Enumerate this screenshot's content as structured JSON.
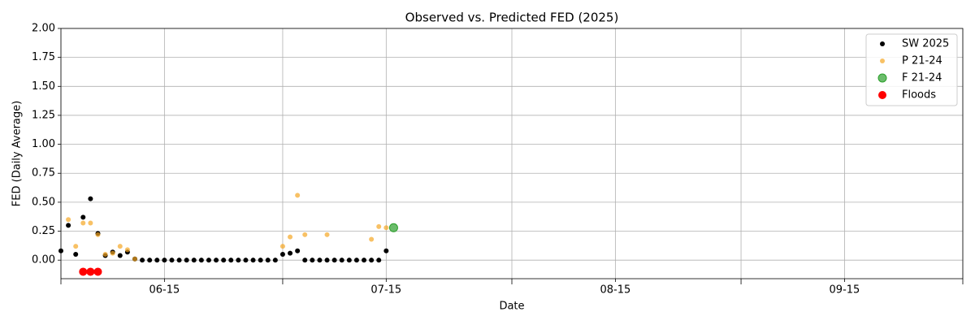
{
  "chart_data": {
    "type": "scatter",
    "title": "Observed vs. Predicted FED (2025)",
    "x_label": "Date",
    "y_label": "FED (Daily Average)",
    "xlim": [
      "06-01",
      "10-01"
    ],
    "xticks": [
      "06-15",
      "07-15",
      "08-15",
      "09-15"
    ],
    "xticks_minor": [
      "06-01",
      "07-01",
      "08-01",
      "09-01",
      "10-01"
    ],
    "ylim": [
      -0.16,
      2.0
    ],
    "yticks": [
      {
        "value": 0,
        "label": "0.00"
      },
      {
        "value": 0.25,
        "label": "0.25"
      },
      {
        "value": 0.5,
        "label": "0.50"
      },
      {
        "value": 0.75,
        "label": "0.75"
      },
      {
        "value": 1,
        "label": "1.00"
      },
      {
        "value": 1.25,
        "label": "1.25"
      },
      {
        "value": 1.5,
        "label": "1.50"
      },
      {
        "value": 1.75,
        "label": "1.75"
      },
      {
        "value": 2,
        "label": "2.00"
      }
    ],
    "grid": true,
    "legend": "upper right",
    "series": [
      {
        "name": "SW 2025",
        "color": "#000000",
        "alpha": 1,
        "size": 3,
        "x": [
          "06-01",
          "06-02",
          "06-03",
          "06-04",
          "06-05",
          "06-06",
          "06-07",
          "06-08",
          "06-09",
          "06-10",
          "06-11",
          "06-12",
          "06-13",
          "06-14",
          "06-15",
          "06-16",
          "06-17",
          "06-18",
          "06-19",
          "06-20",
          "06-21",
          "06-22",
          "06-23",
          "06-24",
          "06-25",
          "06-26",
          "06-27",
          "06-28",
          "06-29",
          "06-30",
          "07-01",
          "07-02",
          "07-03",
          "07-04",
          "07-05",
          "07-06",
          "07-07",
          "07-08",
          "07-09",
          "07-10",
          "07-11",
          "07-12",
          "07-13",
          "07-14",
          "07-15"
        ],
        "values": [
          0.08,
          0.3,
          0.05,
          0.37,
          0.53,
          0.23,
          0.04,
          0.07,
          0.04,
          0.07,
          0.01,
          0,
          0,
          0,
          0,
          0,
          0,
          0,
          0,
          0,
          0,
          0,
          0,
          0,
          0,
          0,
          0,
          0,
          0,
          0,
          0.05,
          0.06,
          0.08,
          0,
          0,
          0,
          0,
          0,
          0,
          0,
          0,
          0,
          0,
          0,
          0.08
        ]
      },
      {
        "name": "P 21-24",
        "color": "#f5a623",
        "alpha": 0.7,
        "size": 3,
        "x": [
          "06-02",
          "06-03",
          "06-04",
          "06-05",
          "06-06",
          "06-07",
          "06-08",
          "06-09",
          "06-10",
          "06-11",
          "07-01",
          "07-02",
          "07-03",
          "07-04",
          "07-07",
          "07-13",
          "07-14",
          "07-15"
        ],
        "values": [
          0.35,
          0.12,
          0.32,
          0.32,
          0.22,
          0.05,
          0.06,
          0.12,
          0.09,
          0.01,
          0.12,
          0.2,
          0.56,
          0.22,
          0.22,
          0.18,
          0.29,
          0.28
        ]
      },
      {
        "name": "F 21-24",
        "color": "#2ca02c",
        "alpha": 0.7,
        "size": 5,
        "x": [
          "07-16"
        ],
        "values": [
          0.28
        ]
      },
      {
        "name": "Floods",
        "color": "#ff0000",
        "alpha": 1,
        "size": 5,
        "x": [
          "06-04",
          "06-05",
          "06-06"
        ],
        "values": [
          -0.1,
          -0.1,
          -0.1
        ]
      }
    ]
  }
}
